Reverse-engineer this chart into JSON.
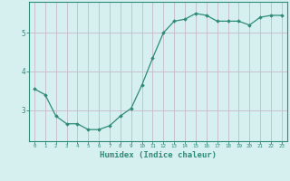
{
  "x": [
    0,
    1,
    2,
    3,
    4,
    5,
    6,
    7,
    8,
    9,
    10,
    11,
    12,
    13,
    14,
    15,
    16,
    17,
    18,
    19,
    20,
    21,
    22,
    23
  ],
  "y": [
    3.55,
    3.4,
    2.85,
    2.65,
    2.65,
    2.5,
    2.5,
    2.6,
    2.85,
    3.05,
    3.65,
    4.35,
    5.0,
    5.3,
    5.35,
    5.5,
    5.45,
    5.3,
    5.3,
    5.3,
    5.2,
    5.4,
    5.45,
    5.45
  ],
  "line_color": "#2e8b76",
  "marker": "D",
  "marker_size": 1.8,
  "bg_color": "#d6f0f0",
  "grid_color": "#c8b8c8",
  "axis_color": "#2e8b76",
  "tick_label_color": "#2e8b76",
  "xlabel": "Humidex (Indice chaleur)",
  "xlabel_fontsize": 6.5,
  "ytick_labels": [
    "3",
    "4",
    "5"
  ],
  "ytick_positions": [
    3,
    4,
    5
  ],
  "ylim": [
    2.2,
    5.8
  ],
  "xlim": [
    -0.5,
    23.5
  ]
}
